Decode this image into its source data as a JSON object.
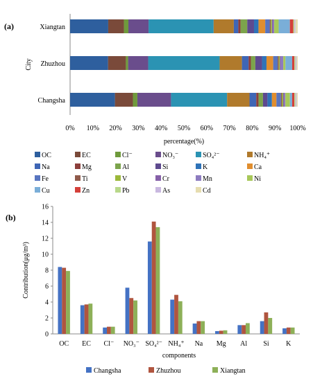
{
  "chart_data": [
    {
      "type": "bar",
      "orientation": "horizontal",
      "stacked": "percent",
      "panel_label": "(a)",
      "categories": [
        "Xiangtan",
        "Zhuzhou",
        "Changsha"
      ],
      "xlabel": "percentage(%)",
      "ylabel": "City",
      "xlim": [
        0,
        100
      ],
      "xticks": [
        "0%",
        "10%",
        "20%",
        "30%",
        "40%",
        "50%",
        "60%",
        "70%",
        "80%",
        "90%",
        "100%"
      ],
      "grid": false,
      "legend_position": "bottom",
      "legend_columns": 6,
      "legend": [
        {
          "label": "OC",
          "color": "#2e5f9e"
        },
        {
          "label": "EC",
          "color": "#7a4a3a"
        },
        {
          "label": "Cl⁻",
          "color": "#6f9a3c"
        },
        {
          "label": "NO₃⁻",
          "color": "#6a4d8c"
        },
        {
          "label": "SO₄²⁻",
          "color": "#2b93b3"
        },
        {
          "label": "NH₄⁺",
          "color": "#b07a2c"
        },
        {
          "label": "Na",
          "color": "#3f66b5"
        },
        {
          "label": "Mg",
          "color": "#8c3f3c"
        },
        {
          "label": "Al",
          "color": "#7ca44c"
        },
        {
          "label": "Si",
          "color": "#5e4a8f"
        },
        {
          "label": "K",
          "color": "#2f73b8"
        },
        {
          "label": "Ca",
          "color": "#e08e2f"
        },
        {
          "label": "Fe",
          "color": "#5875c0"
        },
        {
          "label": "Ti",
          "color": "#8f5a4a"
        },
        {
          "label": "V",
          "color": "#9bb83a"
        },
        {
          "label": "Cr",
          "color": "#8560a8"
        },
        {
          "label": "Mn",
          "color": "#8d7cc0"
        },
        {
          "label": "Ni",
          "color": "#a8c85a"
        },
        {
          "label": "Cu",
          "color": "#7aaed8"
        },
        {
          "label": "Zn",
          "color": "#d4403a"
        },
        {
          "label": "Pb",
          "color": "#b8d88a"
        },
        {
          "label": "As",
          "color": "#c9b8e0"
        },
        {
          "label": "Cd",
          "color": "#e6ddb0"
        }
      ],
      "series_values": {
        "Xiangtan": [
          17,
          7,
          2,
          9,
          29,
          9,
          2,
          1,
          3,
          3,
          2,
          3,
          2,
          0.5,
          0.5,
          0.5,
          0.5,
          2,
          5,
          1.5,
          0.5,
          0.5,
          1
        ],
        "Zhuzhou": [
          17,
          8,
          1,
          9,
          32,
          10,
          3,
          1,
          2,
          3,
          2,
          3,
          2,
          0.5,
          0.5,
          0.5,
          1,
          1,
          3,
          1,
          0.5,
          0.5,
          0.5
        ],
        "Changsha": [
          20,
          8,
          2,
          15,
          25,
          10,
          3,
          1,
          2,
          2,
          2,
          2,
          2,
          0.5,
          0.5,
          0.5,
          0.5,
          2,
          1,
          1,
          0.5,
          0.5,
          0.5
        ]
      }
    },
    {
      "type": "bar",
      "orientation": "vertical",
      "panel_label": "(b)",
      "categories": [
        "OC",
        "EC",
        "Cl⁻",
        "NO₃⁻",
        "SO₄²⁻",
        "NH₄⁺",
        "Na",
        "Mg",
        "Al",
        "Si",
        "K"
      ],
      "xlabel": "components",
      "ylabel": "Contribution(μg/m³)",
      "ylim": [
        0,
        16
      ],
      "yticks": [
        "0",
        "2",
        "4",
        "6",
        "8",
        "10",
        "12",
        "14",
        "16"
      ],
      "grid": false,
      "legend_position": "bottom",
      "series": [
        {
          "name": "Changsha",
          "color": "#4472c4",
          "values": [
            8.4,
            3.6,
            0.8,
            5.8,
            11.6,
            4.3,
            1.3,
            0.35,
            1.1,
            1.6,
            0.7
          ]
        },
        {
          "name": "Zhuzhou",
          "color": "#b0553f",
          "values": [
            8.3,
            3.7,
            0.9,
            4.5,
            14.1,
            4.9,
            1.6,
            0.4,
            1.1,
            2.7,
            0.8
          ]
        },
        {
          "name": "Xiangtan",
          "color": "#8db058",
          "values": [
            7.9,
            3.8,
            0.9,
            4.2,
            13.4,
            4.1,
            1.6,
            0.45,
            1.35,
            2.0,
            0.8
          ]
        }
      ]
    }
  ]
}
